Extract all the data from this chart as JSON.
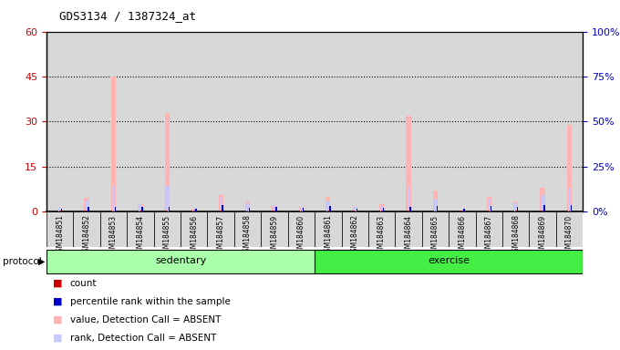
{
  "title": "GDS3134 / 1387324_at",
  "samples": [
    "GSM184851",
    "GSM184852",
    "GSM184853",
    "GSM184854",
    "GSM184855",
    "GSM184856",
    "GSM184857",
    "GSM184858",
    "GSM184859",
    "GSM184860",
    "GSM184861",
    "GSM184862",
    "GSM184863",
    "GSM184864",
    "GSM184865",
    "GSM184866",
    "GSM184867",
    "GSM184868",
    "GSM184869",
    "GSM184870"
  ],
  "value_absent": [
    1.0,
    4.5,
    45.0,
    2.5,
    33.0,
    1.0,
    5.5,
    3.5,
    2.0,
    1.5,
    5.0,
    1.5,
    2.5,
    32.0,
    7.0,
    0.0,
    5.0,
    3.5,
    8.0,
    29.0
  ],
  "rank_absent": [
    2.0,
    6.0,
    14.5,
    4.0,
    14.5,
    1.5,
    8.0,
    4.5,
    3.5,
    2.5,
    5.5,
    2.5,
    3.0,
    14.0,
    6.5,
    0.0,
    7.0,
    4.5,
    9.5,
    13.5
  ],
  "count_red": [
    0.5,
    0.5,
    0.5,
    0.5,
    0.5,
    0.5,
    0.5,
    0.5,
    0.5,
    0.5,
    0.5,
    0.5,
    0.5,
    0.5,
    0.5,
    0.5,
    0.5,
    0.5,
    0.5,
    0.5
  ],
  "percentile_blue": [
    1.5,
    2.5,
    2.5,
    2.5,
    2.5,
    1.5,
    3.5,
    2.0,
    2.5,
    2.0,
    3.0,
    1.5,
    2.0,
    2.5,
    3.0,
    1.5,
    3.0,
    2.5,
    3.5,
    3.5
  ],
  "group_sedentary": [
    0,
    9
  ],
  "group_exercise": [
    10,
    19
  ],
  "ylim_left": [
    0,
    60
  ],
  "ylim_right": [
    0,
    100
  ],
  "yticks_left": [
    0,
    15,
    30,
    45,
    60
  ],
  "yticks_right": [
    0,
    25,
    50,
    75,
    100
  ],
  "color_value_absent": "#ffb3b3",
  "color_rank_absent": "#c8c8ff",
  "color_count": "#cc0000",
  "color_percentile": "#0000cc",
  "color_sedentary": "#aaffaa",
  "color_exercise": "#44ee44",
  "color_bg_col": "#d8d8d8",
  "color_bg_plot": "#ffffff",
  "legend_items": [
    {
      "label": "count",
      "color": "#cc0000"
    },
    {
      "label": "percentile rank within the sample",
      "color": "#0000cc"
    },
    {
      "label": "value, Detection Call = ABSENT",
      "color": "#ffb3b3"
    },
    {
      "label": "rank, Detection Call = ABSENT",
      "color": "#c8c8ff"
    }
  ]
}
